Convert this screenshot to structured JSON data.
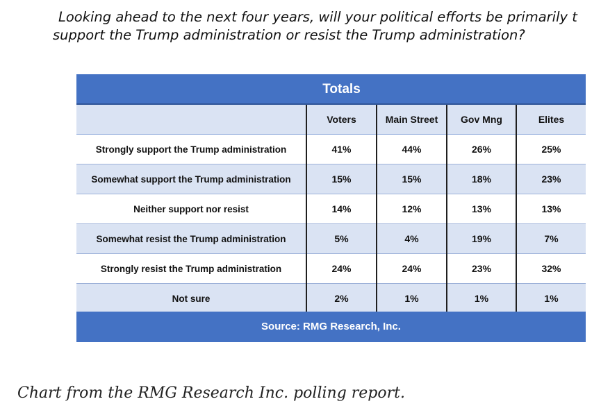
{
  "question": {
    "line1": "Looking ahead to the next four years, will your political efforts be primarily t",
    "line2": "support the Trump administration or resist the Trump administration?"
  },
  "chart_data": {
    "type": "table",
    "title": "Totals",
    "columns": [
      "",
      "Voters",
      "Main Street",
      "Gov Mng",
      "Elites"
    ],
    "rows": [
      {
        "label": "Strongly support the Trump administration",
        "values": [
          "41%",
          "44%",
          "26%",
          "25%"
        ]
      },
      {
        "label": "Somewhat support the Trump administration",
        "values": [
          "15%",
          "15%",
          "18%",
          "23%"
        ]
      },
      {
        "label": "Neither support nor resist",
        "values": [
          "14%",
          "12%",
          "13%",
          "13%"
        ]
      },
      {
        "label": "Somewhat resist the Trump administration",
        "values": [
          "5%",
          "4%",
          "19%",
          "7%"
        ]
      },
      {
        "label": "Strongly resist the Trump administration",
        "values": [
          "24%",
          "24%",
          "23%",
          "32%"
        ]
      },
      {
        "label": "Not sure",
        "values": [
          "2%",
          "1%",
          "1%",
          "1%"
        ]
      }
    ],
    "source": "Source: RMG Research, Inc.",
    "colors": {
      "band": "#4472c4",
      "row_shade": "#dae3f3"
    }
  },
  "caption": "Chart from the RMG Research Inc. polling report."
}
